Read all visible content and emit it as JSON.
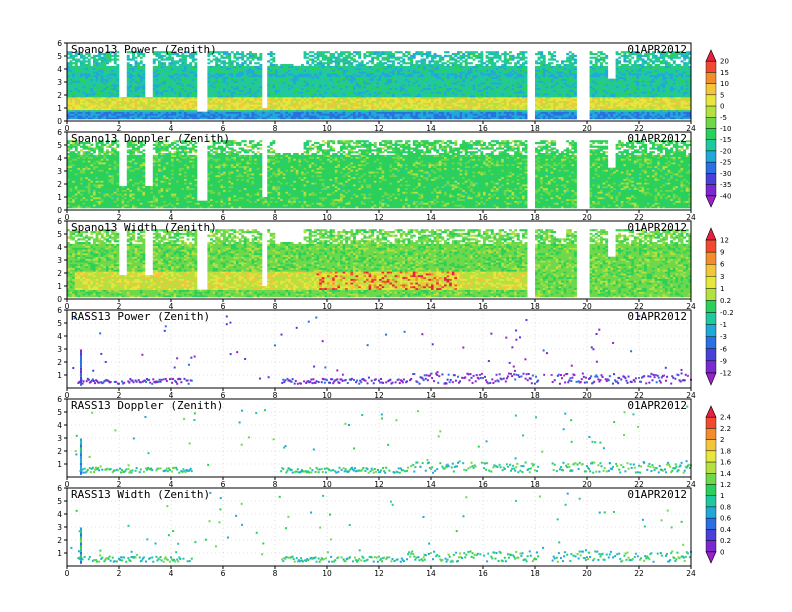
{
  "chart_data": {
    "type": "heatmap",
    "date": "01APR2012",
    "x_ticks": [
      "0",
      "2",
      "4",
      "6",
      "8",
      "10",
      "12",
      "14",
      "16",
      "18",
      "20",
      "22",
      "24"
    ],
    "xlim": [
      0,
      24
    ],
    "panels": [
      {
        "title": "Spano13 Power (Zenith)",
        "date": "01APR2012",
        "y_ticks": [
          "0",
          "1",
          "2",
          "3",
          "4",
          "5",
          "6"
        ],
        "ylim": [
          0,
          6
        ]
      },
      {
        "title": "Spano13 Doppler (Zenith)",
        "date": "01APR2012",
        "y_ticks": [
          "0",
          "1",
          "2",
          "3",
          "4",
          "5",
          "6"
        ],
        "ylim": [
          0,
          6
        ]
      },
      {
        "title": "Spano13 Width (Zenith)",
        "date": "01APR2012",
        "y_ticks": [
          "0",
          "1",
          "2",
          "3",
          "4",
          "5",
          "6"
        ],
        "ylim": [
          0,
          6
        ]
      },
      {
        "title": "RASS13 Power (Zenith)",
        "date": "01APR2012",
        "y_ticks": [
          "1",
          "2",
          "3",
          "4",
          "5",
          "6"
        ],
        "ylim": [
          0,
          6
        ]
      },
      {
        "title": "RASS13 Doppler (Zenith)",
        "date": "01APR2012",
        "y_ticks": [
          "1",
          "2",
          "3",
          "4",
          "5",
          "6"
        ],
        "ylim": [
          0,
          6
        ]
      },
      {
        "title": "RASS13 Width (Zenith)",
        "date": "01APR2012",
        "y_ticks": [
          "1",
          "2",
          "3",
          "4",
          "5",
          "6"
        ],
        "ylim": [
          0,
          6
        ]
      }
    ],
    "colorbars": [
      {
        "labels": [
          "20",
          "15",
          "10",
          "5",
          "0",
          "-5",
          "-10",
          "-15",
          "-20",
          "-25",
          "-30",
          "-35",
          "-40"
        ],
        "colors": [
          "#e8203e",
          "#f04a30",
          "#f28c2c",
          "#f2c53a",
          "#e6e63c",
          "#b4e040",
          "#6ed84a",
          "#2ad05a",
          "#20c8a0",
          "#20a8d8",
          "#2a70e0",
          "#4a40d8",
          "#7a28d0",
          "#9a20c8"
        ]
      },
      {
        "labels": [
          "12",
          "9",
          "6",
          "3",
          "1",
          "0.2",
          "-0.2",
          "-1",
          "-3",
          "-6",
          "-9",
          "-12"
        ],
        "colors": [
          "#e8203e",
          "#f04a30",
          "#f28c2c",
          "#f2c53a",
          "#e6e63c",
          "#b4e040",
          "#2ad05a",
          "#20c8a0",
          "#20a8d8",
          "#2a70e0",
          "#4a40d8",
          "#7a28d0",
          "#9a20c8"
        ]
      },
      {
        "labels": [
          "2.4",
          "2.2",
          "2",
          "1.8",
          "1.6",
          "1.4",
          "1.2",
          "1",
          "0.8",
          "0.6",
          "0.4",
          "0.2",
          "0"
        ],
        "colors": [
          "#e8203e",
          "#f04a30",
          "#f28c2c",
          "#f2c53a",
          "#e6e63c",
          "#b4e040",
          "#6ed84a",
          "#2ad05a",
          "#20c8a0",
          "#20a8d8",
          "#2a70e0",
          "#4a40d8",
          "#7a28d0",
          "#9a20c8"
        ]
      }
    ]
  }
}
